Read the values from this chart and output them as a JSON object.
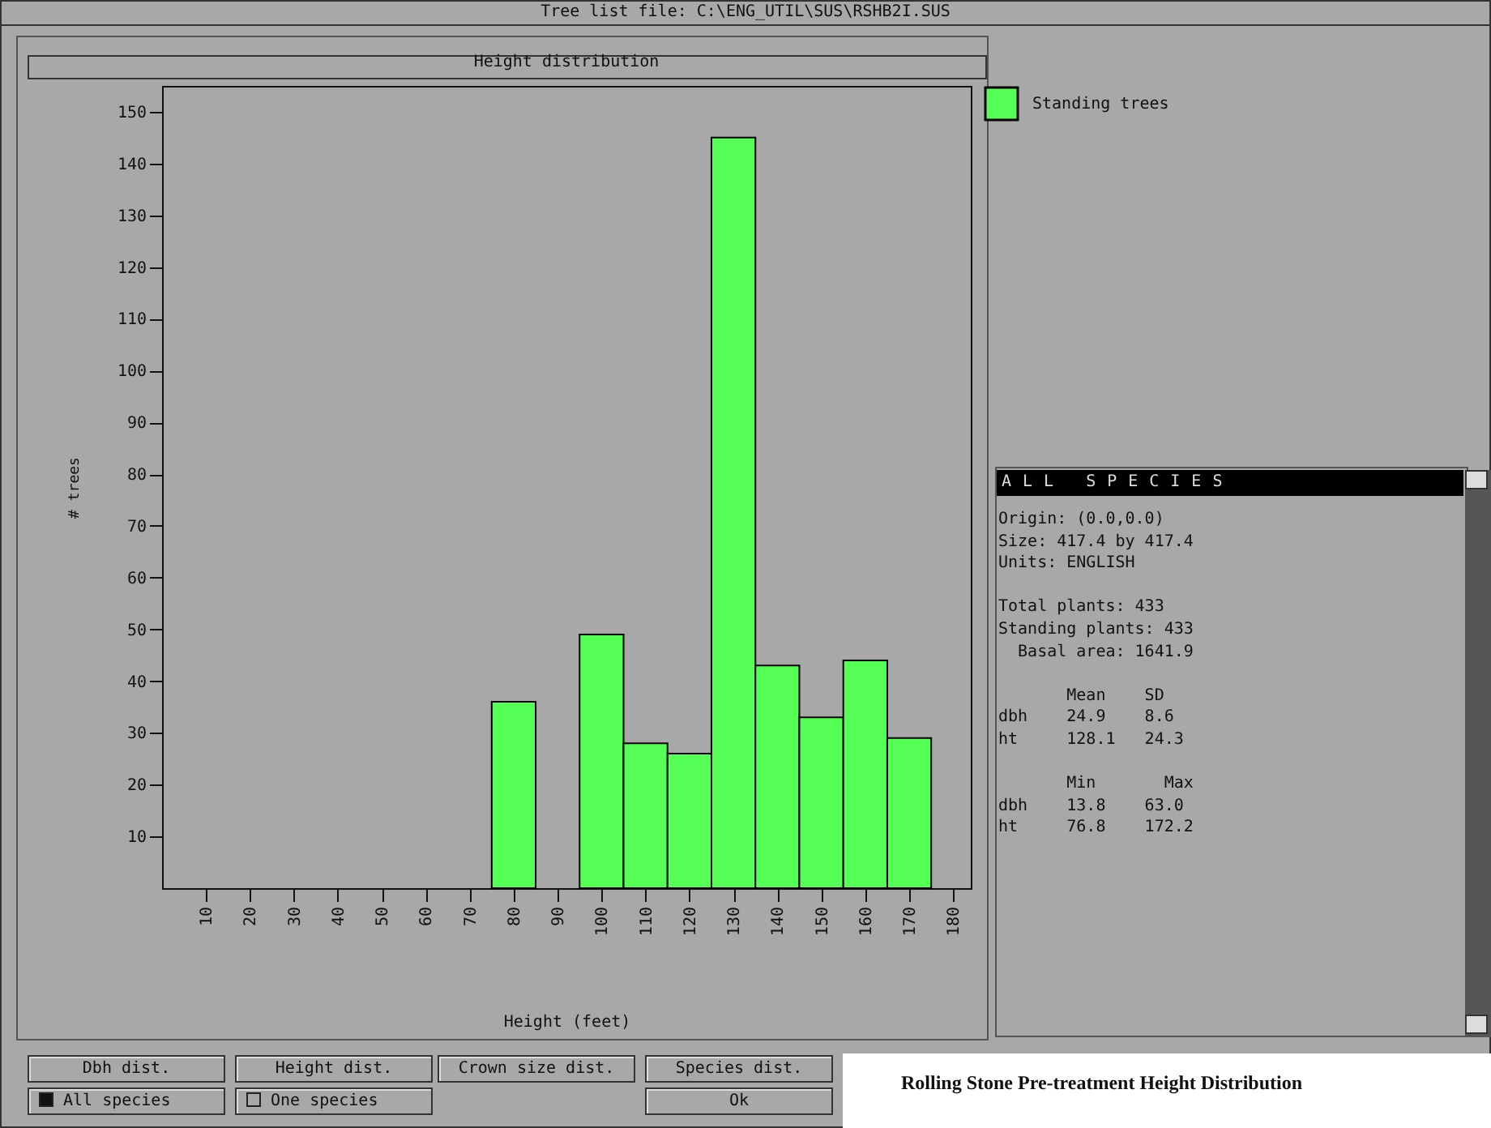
{
  "chart_data": {
    "type": "histogram",
    "title": "Height distribution",
    "xlabel": "Height (feet)",
    "ylabel": "# trees",
    "bins": [
      75,
      85,
      95,
      105,
      115,
      125,
      135,
      145,
      155,
      165,
      175
    ],
    "series": [
      {
        "name": "Standing trees",
        "color": "#55ff55",
        "values": [
          36,
          0,
          49,
          28,
          26,
          145,
          43,
          33,
          44,
          29
        ]
      }
    ],
    "xlim": [
      0,
      184
    ],
    "xticks": [
      10,
      20,
      30,
      40,
      50,
      60,
      70,
      80,
      90,
      100,
      110,
      120,
      130,
      140,
      150,
      160,
      170,
      180
    ],
    "ylim": [
      0,
      155
    ],
    "yticks": [
      10,
      20,
      30,
      40,
      50,
      60,
      70,
      80,
      90,
      100,
      110,
      120,
      130,
      140,
      150
    ],
    "legend": "top right",
    "grid": false,
    "annotations": [
      "Tree list file: C:\\ENG_UTIL\\SUS\\RSHB2I.SUS",
      "ALL SPECIES",
      "Origin: (0.0,0.0)\nSize: 417.4 by 417.4\nUnits: ENGLISH\n\nTotal plants: 433\nStanding plants: 433\n  Basal area: 1641.9\n\n       Mean    SD\ndbh    24.9    8.6\nht     128.1   24.3\n\n       Min       Max\ndbh    13.8    63.0\nht     76.8    172.2",
      "Dbh dist.",
      "Height dist.",
      "Crown size dist.",
      "Species dist.",
      "All species",
      "One species",
      "Ok",
      "Rolling Stone  Pre-treatment Height Distribution"
    ]
  }
}
